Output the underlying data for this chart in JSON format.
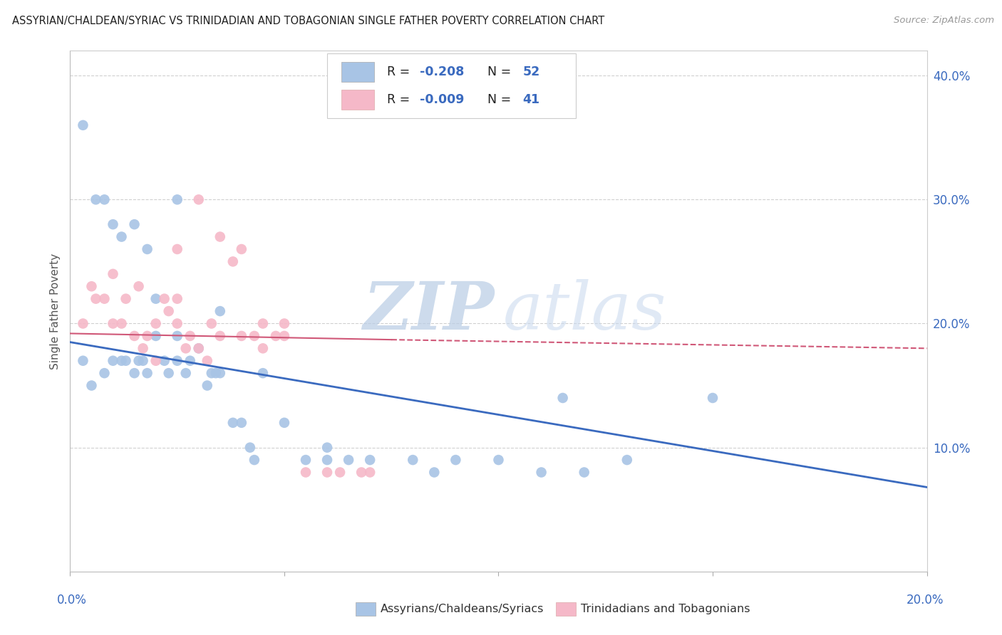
{
  "title": "ASSYRIAN/CHALDEAN/SYRIAC VS TRINIDADIAN AND TOBAGONIAN SINGLE FATHER POVERTY CORRELATION CHART",
  "source": "Source: ZipAtlas.com",
  "ylabel": "Single Father Poverty",
  "y_ticks": [
    0.0,
    0.1,
    0.2,
    0.3,
    0.4
  ],
  "y_tick_labels": [
    "",
    "10.0%",
    "20.0%",
    "30.0%",
    "40.0%"
  ],
  "xlim": [
    0.0,
    0.2
  ],
  "ylim": [
    0.0,
    0.42
  ],
  "blue_R": -0.208,
  "blue_N": 52,
  "pink_R": -0.009,
  "pink_N": 41,
  "blue_color": "#a8c4e5",
  "pink_color": "#f5b8c8",
  "blue_line_color": "#3a6abf",
  "pink_line_color": "#d05878",
  "text_color": "#3a6abf",
  "label_color": "#3a6abf",
  "legend_label_blue": "Assyrians/Chaldeans/Syriacs",
  "legend_label_pink": "Trinidadians and Tobagonians",
  "watermark_zip": "ZIP",
  "watermark_atlas": "atlas",
  "blue_scatter_x": [
    0.003,
    0.005,
    0.008,
    0.01,
    0.012,
    0.013,
    0.015,
    0.016,
    0.017,
    0.018,
    0.02,
    0.022,
    0.023,
    0.025,
    0.025,
    0.027,
    0.028,
    0.03,
    0.032,
    0.033,
    0.034,
    0.035,
    0.038,
    0.04,
    0.042,
    0.043,
    0.045,
    0.05,
    0.055,
    0.06,
    0.06,
    0.065,
    0.07,
    0.08,
    0.085,
    0.09,
    0.1,
    0.11,
    0.115,
    0.12,
    0.13,
    0.15,
    0.003,
    0.006,
    0.008,
    0.01,
    0.012,
    0.015,
    0.018,
    0.02,
    0.025,
    0.035
  ],
  "blue_scatter_y": [
    0.17,
    0.15,
    0.16,
    0.17,
    0.17,
    0.17,
    0.16,
    0.17,
    0.17,
    0.16,
    0.19,
    0.17,
    0.16,
    0.17,
    0.19,
    0.16,
    0.17,
    0.18,
    0.15,
    0.16,
    0.16,
    0.16,
    0.12,
    0.12,
    0.1,
    0.09,
    0.16,
    0.12,
    0.09,
    0.1,
    0.09,
    0.09,
    0.09,
    0.09,
    0.08,
    0.09,
    0.09,
    0.08,
    0.14,
    0.08,
    0.09,
    0.14,
    0.36,
    0.3,
    0.3,
    0.28,
    0.27,
    0.28,
    0.26,
    0.22,
    0.3,
    0.21
  ],
  "pink_scatter_x": [
    0.003,
    0.005,
    0.006,
    0.008,
    0.01,
    0.01,
    0.012,
    0.013,
    0.015,
    0.016,
    0.017,
    0.018,
    0.02,
    0.02,
    0.022,
    0.023,
    0.025,
    0.025,
    0.027,
    0.028,
    0.03,
    0.032,
    0.033,
    0.035,
    0.038,
    0.04,
    0.043,
    0.045,
    0.048,
    0.05,
    0.055,
    0.06,
    0.063,
    0.068,
    0.07,
    0.03,
    0.035,
    0.04,
    0.045,
    0.05,
    0.025
  ],
  "pink_scatter_y": [
    0.2,
    0.23,
    0.22,
    0.22,
    0.24,
    0.2,
    0.2,
    0.22,
    0.19,
    0.23,
    0.18,
    0.19,
    0.2,
    0.17,
    0.22,
    0.21,
    0.2,
    0.22,
    0.18,
    0.19,
    0.18,
    0.17,
    0.2,
    0.19,
    0.25,
    0.19,
    0.19,
    0.18,
    0.19,
    0.2,
    0.08,
    0.08,
    0.08,
    0.08,
    0.08,
    0.3,
    0.27,
    0.26,
    0.2,
    0.19,
    0.26
  ],
  "blue_line_x": [
    0.0,
    0.2
  ],
  "blue_line_y": [
    0.185,
    0.068
  ],
  "pink_line_x": [
    0.0,
    0.2
  ],
  "pink_line_y": [
    0.192,
    0.18
  ]
}
